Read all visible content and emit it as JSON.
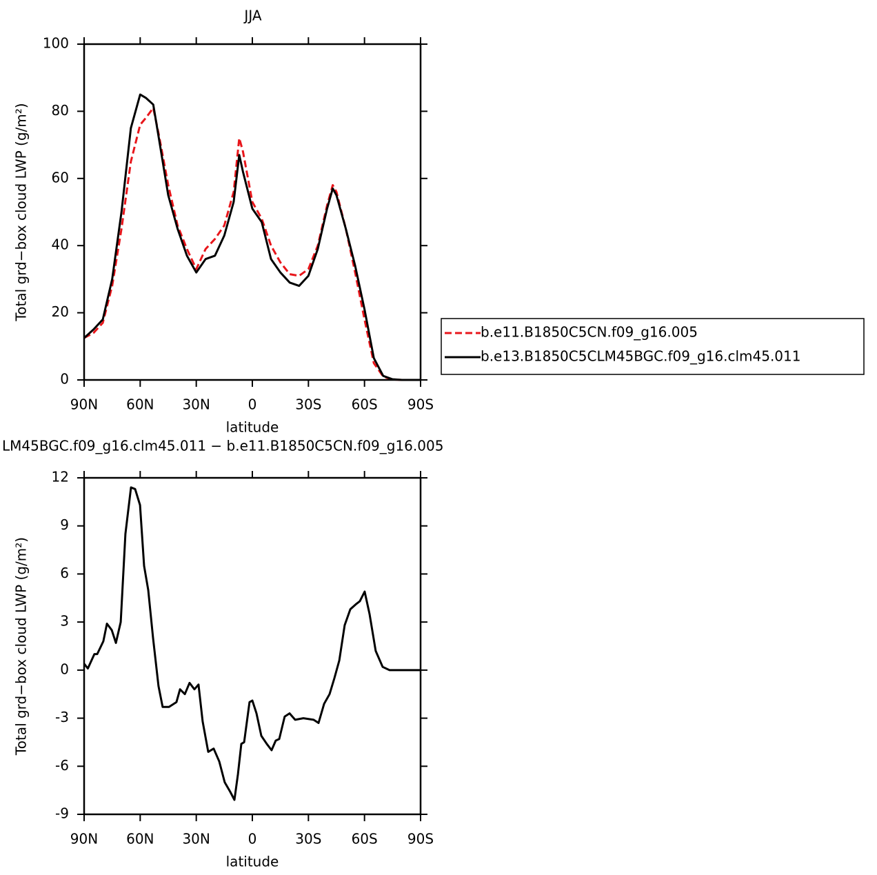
{
  "chart_data": [
    {
      "type": "line",
      "title": "JJA",
      "xlabel": "latitude",
      "ylabel": "Total grd−box cloud LWP (g/m²)",
      "x": [
        90,
        85,
        80,
        75,
        70,
        65,
        60,
        57,
        53,
        50,
        45,
        40,
        35,
        30,
        25,
        20,
        15,
        10,
        7,
        5,
        0,
        -5,
        -10,
        -15,
        -20,
        -25,
        -30,
        -35,
        -40,
        -43,
        -45,
        -50,
        -55,
        -60,
        -65,
        -70,
        -75,
        -80,
        -85,
        -90
      ],
      "series": [
        {
          "name": "b.e11.B1850C5CN.f09_g16.005",
          "color": "#e8161b",
          "dash": true,
          "values": [
            12.5,
            14,
            17,
            28,
            45,
            65,
            76,
            78,
            81,
            73,
            58,
            46,
            39,
            33,
            39,
            42,
            46,
            56,
            72,
            68,
            53,
            48,
            40,
            35,
            31.5,
            31,
            33,
            40,
            52,
            58,
            56,
            45,
            32,
            18,
            5,
            1,
            0.1,
            0,
            0,
            0
          ]
        },
        {
          "name": "b.e13.B1850C5CLM45BGC.f09_g16.clm45.011",
          "color": "#000000",
          "dash": false,
          "values": [
            12.5,
            15,
            18,
            30,
            50,
            75,
            85,
            84,
            82,
            72,
            55,
            45,
            37,
            32,
            36,
            37,
            43,
            53,
            67,
            62,
            51,
            47,
            36,
            32,
            29,
            28,
            31,
            39,
            51,
            57,
            55,
            45,
            34,
            21,
            6.5,
            1.2,
            0.2,
            0,
            0,
            0
          ]
        }
      ],
      "xlim": [
        90,
        -90
      ],
      "xticks": [
        {
          "value": 90,
          "label": "90N"
        },
        {
          "value": 60,
          "label": "60N"
        },
        {
          "value": 30,
          "label": "30N"
        },
        0,
        {
          "value": -30,
          "label": "30S"
        },
        {
          "value": -60,
          "label": "60S"
        },
        {
          "value": -90,
          "label": "90S"
        }
      ],
      "ylim": [
        0,
        100
      ],
      "yticks": [
        0,
        20,
        40,
        60,
        80,
        100
      ],
      "legend": true
    },
    {
      "type": "line",
      "title": "LM45BGC.f09_g16.clm45.011 − b.e11.B1850C5CN.f09_g16.005",
      "xlabel": "latitude",
      "ylabel": "Total grd−box cloud LWP (g/m²)",
      "x": [
        90,
        88,
        84.5,
        83,
        79.7,
        77.8,
        75.2,
        73,
        70.4,
        67.9,
        64.9,
        62.7,
        60.1,
        57.9,
        55.7,
        53.1,
        50.2,
        48,
        44.6,
        40.6,
        38.7,
        36.1,
        33.6,
        31,
        28.8,
        26.6,
        23.6,
        20.7,
        17.7,
        14.8,
        11.8,
        9.6,
        7.7,
        5.9,
        4.4,
        1.5,
        0,
        -2.2,
        -4.8,
        -7.7,
        -10.3,
        -12.5,
        -14.4,
        -17.3,
        -19.9,
        -22.9,
        -27.3,
        -32.8,
        -35.4,
        -38.4,
        -41.3,
        -43.9,
        -46.5,
        -49.4,
        -52.4,
        -55.3,
        -57.5,
        -60.1,
        -62.7,
        -66,
        -69.7,
        -73.4,
        -90
      ],
      "series": [
        {
          "color": "#000000",
          "dash": false,
          "values": [
            0.4,
            0.1,
            1,
            1,
            1.8,
            2.9,
            2.5,
            1.7,
            3,
            8.5,
            11.4,
            11.3,
            10.3,
            6.5,
            5,
            2,
            -1,
            -2.3,
            -2.3,
            -2,
            -1.2,
            -1.5,
            -0.8,
            -1.2,
            -0.9,
            -3.2,
            -5.1,
            -4.9,
            -5.7,
            -7,
            -7.6,
            -8.1,
            -6.5,
            -4.6,
            -4.5,
            -2,
            -1.9,
            -2.7,
            -4.1,
            -4.6,
            -5,
            -4.4,
            -4.3,
            -2.9,
            -2.7,
            -3.1,
            -3,
            -3.1,
            -3.3,
            -2.1,
            -1.5,
            -0.5,
            0.6,
            2.8,
            3.8,
            4.1,
            4.3,
            4.9,
            3.5,
            1.2,
            0.2,
            0,
            0
          ]
        }
      ],
      "xlim": [
        90,
        -90
      ],
      "xticks": [
        {
          "value": 90,
          "label": "90N"
        },
        {
          "value": 60,
          "label": "60N"
        },
        {
          "value": 30,
          "label": "30N"
        },
        0,
        {
          "value": -30,
          "label": "30S"
        },
        {
          "value": -60,
          "label": "60S"
        },
        {
          "value": -90,
          "label": "90S"
        }
      ],
      "ylim": [
        -9,
        12
      ],
      "yticks": [
        -9,
        -6,
        -3,
        0,
        3,
        6,
        9,
        12
      ],
      "legend": false
    }
  ]
}
